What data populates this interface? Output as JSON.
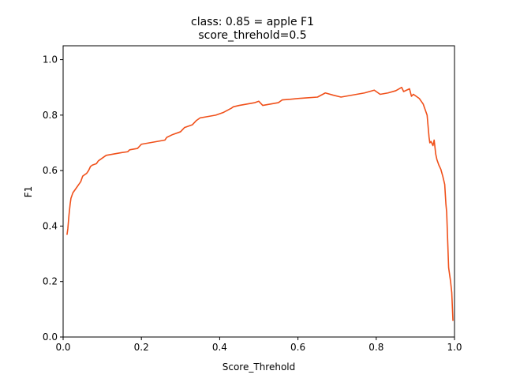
{
  "chart_data": {
    "type": "line",
    "title": "class: 0.85 = apple F1",
    "subtitle": "score_threhold=0.5",
    "xlabel": "Score_Threhold",
    "ylabel": "F1",
    "xlim": [
      0,
      1
    ],
    "ylim": [
      0,
      1.05
    ],
    "grid": false,
    "legend": "none",
    "xticks": [
      0.0,
      0.2,
      0.4,
      0.6,
      0.8,
      1.0
    ],
    "xtick_labels": [
      "0.0",
      "0.2",
      "0.4",
      "0.6",
      "0.8",
      "1.0"
    ],
    "yticks": [
      0.0,
      0.2,
      0.4,
      0.6,
      0.8,
      1.0
    ],
    "ytick_labels": [
      "0.0",
      "0.2",
      "0.4",
      "0.6",
      "0.8",
      "1.0"
    ],
    "series": [
      {
        "color": "#f0501a",
        "x": [
          0.01,
          0.012,
          0.015,
          0.018,
          0.02,
          0.025,
          0.03,
          0.035,
          0.04,
          0.045,
          0.05,
          0.055,
          0.06,
          0.065,
          0.07,
          0.075,
          0.085,
          0.09,
          0.095,
          0.1,
          0.105,
          0.11,
          0.13,
          0.15,
          0.165,
          0.17,
          0.19,
          0.2,
          0.22,
          0.24,
          0.26,
          0.265,
          0.28,
          0.3,
          0.31,
          0.33,
          0.34,
          0.35,
          0.37,
          0.39,
          0.41,
          0.43,
          0.435,
          0.45,
          0.47,
          0.49,
          0.5,
          0.51,
          0.53,
          0.55,
          0.56,
          0.58,
          0.6,
          0.62,
          0.65,
          0.67,
          0.69,
          0.71,
          0.73,
          0.75,
          0.77,
          0.795,
          0.81,
          0.83,
          0.85,
          0.865,
          0.87,
          0.885,
          0.89,
          0.895,
          0.9,
          0.91,
          0.92,
          0.93,
          0.935,
          0.937,
          0.94,
          0.945,
          0.948,
          0.952,
          0.955,
          0.96,
          0.965,
          0.97,
          0.975,
          0.978,
          0.98,
          0.985,
          0.99,
          0.993,
          0.996
        ],
        "y": [
          0.37,
          0.39,
          0.44,
          0.48,
          0.5,
          0.52,
          0.53,
          0.54,
          0.55,
          0.56,
          0.58,
          0.585,
          0.59,
          0.6,
          0.615,
          0.62,
          0.625,
          0.635,
          0.64,
          0.645,
          0.65,
          0.655,
          0.66,
          0.665,
          0.668,
          0.675,
          0.68,
          0.695,
          0.7,
          0.705,
          0.71,
          0.72,
          0.73,
          0.74,
          0.755,
          0.765,
          0.78,
          0.79,
          0.795,
          0.8,
          0.81,
          0.825,
          0.83,
          0.835,
          0.84,
          0.845,
          0.85,
          0.835,
          0.84,
          0.845,
          0.855,
          0.857,
          0.86,
          0.862,
          0.865,
          0.88,
          0.872,
          0.865,
          0.87,
          0.875,
          0.88,
          0.89,
          0.875,
          0.88,
          0.888,
          0.9,
          0.885,
          0.895,
          0.868,
          0.875,
          0.87,
          0.86,
          0.84,
          0.8,
          0.72,
          0.7,
          0.705,
          0.69,
          0.71,
          0.66,
          0.64,
          0.62,
          0.605,
          0.58,
          0.55,
          0.48,
          0.45,
          0.25,
          0.2,
          0.16,
          0.06
        ]
      }
    ]
  }
}
